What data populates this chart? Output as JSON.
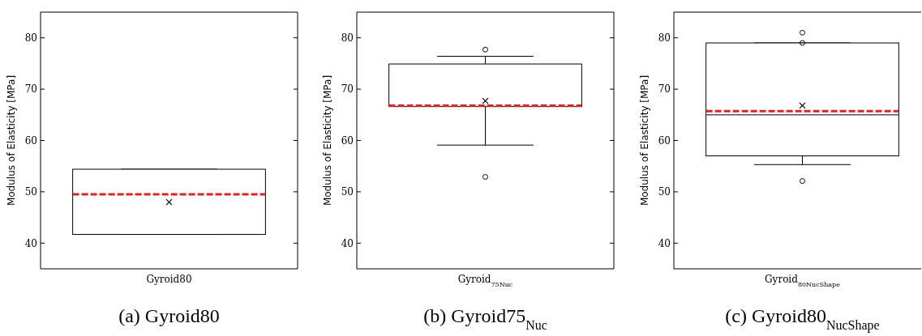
{
  "chart_data": [
    {
      "type": "box",
      "title": "(a) Gyroid80",
      "categories": [
        "Gyroid80"
      ],
      "ylabel": "Modulus of Elasticity [MPa]",
      "ylim": [
        35,
        85
      ],
      "yticks": [
        40,
        50,
        60,
        70,
        80
      ],
      "boxes": [
        {
          "low": 41.7,
          "q1": 41.7,
          "median": 49.5,
          "q3": 54.4,
          "high": 54.4,
          "mean": 48.0
        }
      ]
    },
    {
      "type": "box",
      "title": "(b) Gyroid75$_{Nuc}$",
      "categories": [
        "Gyroid$_{75Nuc}$"
      ],
      "ylabel": "Modulus of Elasticity [MPa]",
      "ylim": [
        35,
        85
      ],
      "yticks": [
        40,
        50,
        60,
        70,
        80
      ],
      "boxes": [
        {
          "low": 59.1,
          "q1": 66.6,
          "median": 66.8,
          "q3": 74.9,
          "high": 76.4,
          "mean": 67.7,
          "outliers": [
            77.7,
            52.9
          ]
        }
      ]
    },
    {
      "type": "box",
      "title": "(c) Gyroid80$_{NucShape}$",
      "categories": [
        "Gyroid$_{80NucShape}$"
      ],
      "ylabel": "Modulus of Elasticity [MPa]",
      "ylim": [
        35,
        85
      ],
      "yticks": [
        40,
        50,
        60,
        70,
        80
      ],
      "boxes": [
        {
          "low": 55.3,
          "q1": 57.0,
          "median": 65.7,
          "q3": 79.0,
          "high": 79.0,
          "mean": 66.8,
          "outliers": [
            81.0,
            79.0,
            52.1
          ]
        }
      ],
      "ref_lines": [
        {
          "axis": "y",
          "value": 65.0,
          "color": "#555555",
          "line_style": "solid"
        }
      ]
    }
  ]
}
